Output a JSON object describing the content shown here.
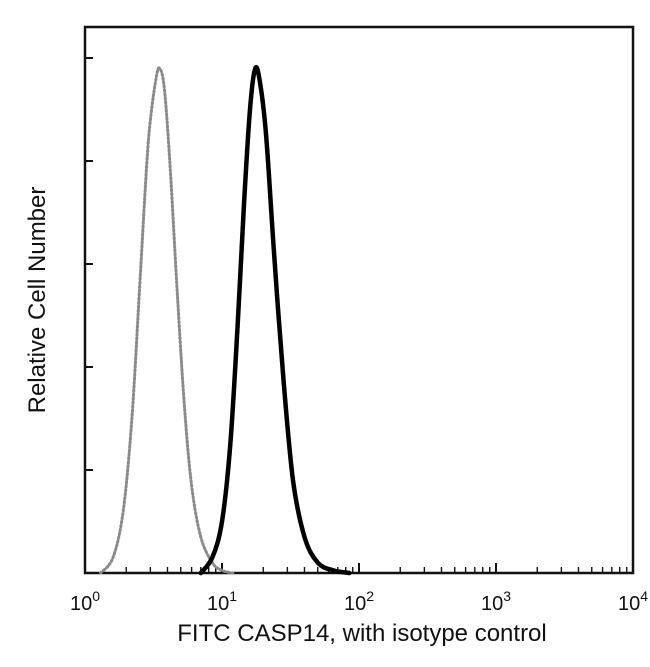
{
  "chart_data": {
    "type": "line",
    "title": "",
    "xlabel": "FITC  CASP14,  with isotype control",
    "ylabel": "Relative Cell Number",
    "x_scale": "log",
    "xlim": [
      1,
      10000
    ],
    "ylim": [
      0,
      1
    ],
    "x_ticks": [
      {
        "value": 1,
        "base": "10",
        "exp": "0"
      },
      {
        "value": 10,
        "base": "10",
        "exp": "1"
      },
      {
        "value": 100,
        "base": "10",
        "exp": "2"
      },
      {
        "value": 1000,
        "base": "10",
        "exp": "3"
      },
      {
        "value": 10000,
        "base": "10",
        "exp": "4"
      }
    ],
    "y_ticks": [
      0,
      0.2,
      0.4,
      0.6,
      0.8,
      1.0
    ],
    "grid": false,
    "legend": "none",
    "series": [
      {
        "style": "dotted-gray",
        "color": "#8a8a8a",
        "x": [
          1.3,
          1.6,
          1.9,
          2.2,
          2.5,
          2.8,
          3.0,
          3.3,
          3.5,
          3.8,
          4.2,
          4.7,
          5.3,
          6.0,
          7.0,
          8.5,
          10,
          12
        ],
        "values": [
          0.0,
          0.03,
          0.12,
          0.3,
          0.55,
          0.78,
          0.88,
          0.96,
          0.98,
          0.94,
          0.78,
          0.55,
          0.33,
          0.17,
          0.07,
          0.02,
          0.005,
          0.0
        ]
      },
      {
        "style": "solid-black",
        "color": "#000000",
        "x": [
          7.0,
          8.5,
          10,
          11.5,
          13,
          14.5,
          16,
          17.5,
          19,
          21,
          24,
          28,
          33,
          40,
          50,
          65,
          85
        ],
        "values": [
          0.0,
          0.03,
          0.1,
          0.25,
          0.48,
          0.72,
          0.9,
          0.98,
          0.95,
          0.85,
          0.62,
          0.38,
          0.18,
          0.07,
          0.02,
          0.005,
          0.0
        ]
      }
    ]
  }
}
